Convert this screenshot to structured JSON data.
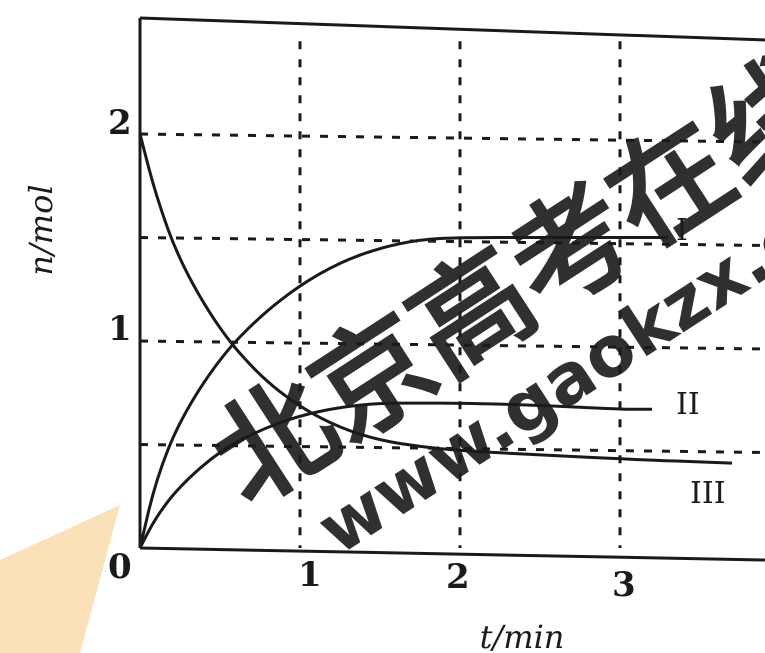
{
  "chart_data": {
    "type": "line",
    "xlabel": "t/min",
    "ylabel": "n/mol",
    "xlim": [
      0,
      3.7
    ],
    "ylim": [
      0,
      2.4
    ],
    "x_ticks": [
      "1",
      "2",
      "3"
    ],
    "y_ticks": [
      "1",
      "2"
    ],
    "origin_label": "0",
    "grid": "dashed, every 0.5 min and 0.5 mol",
    "series": [
      {
        "name": "I",
        "x": [
          0,
          0.1,
          0.25,
          0.5,
          0.75,
          1.0,
          1.25,
          1.5,
          1.75,
          2.0,
          2.5,
          3.0,
          3.3
        ],
        "y": [
          0,
          0.33,
          0.62,
          0.92,
          1.12,
          1.27,
          1.38,
          1.45,
          1.49,
          1.5,
          1.5,
          1.5,
          1.5
        ]
      },
      {
        "name": "II",
        "x": [
          0,
          0.1,
          0.25,
          0.5,
          0.75,
          1.0,
          1.25,
          1.5,
          1.75,
          2.0,
          2.5,
          3.0,
          3.2
        ],
        "y": [
          0,
          0.15,
          0.3,
          0.47,
          0.57,
          0.64,
          0.68,
          0.7,
          0.7,
          0.7,
          0.69,
          0.67,
          0.67
        ]
      },
      {
        "name": "III",
        "x": [
          0,
          0.1,
          0.25,
          0.5,
          0.75,
          1.0,
          1.25,
          1.5,
          1.75,
          2.0,
          2.5,
          3.0,
          3.7
        ],
        "y": [
          2.0,
          1.7,
          1.38,
          1.05,
          0.83,
          0.68,
          0.58,
          0.52,
          0.49,
          0.47,
          0.45,
          0.43,
          0.41
        ]
      }
    ]
  },
  "watermark": {
    "chinese": "北京高考在线",
    "url": "www.gaokzx.com",
    "color": "#1e72d6"
  }
}
